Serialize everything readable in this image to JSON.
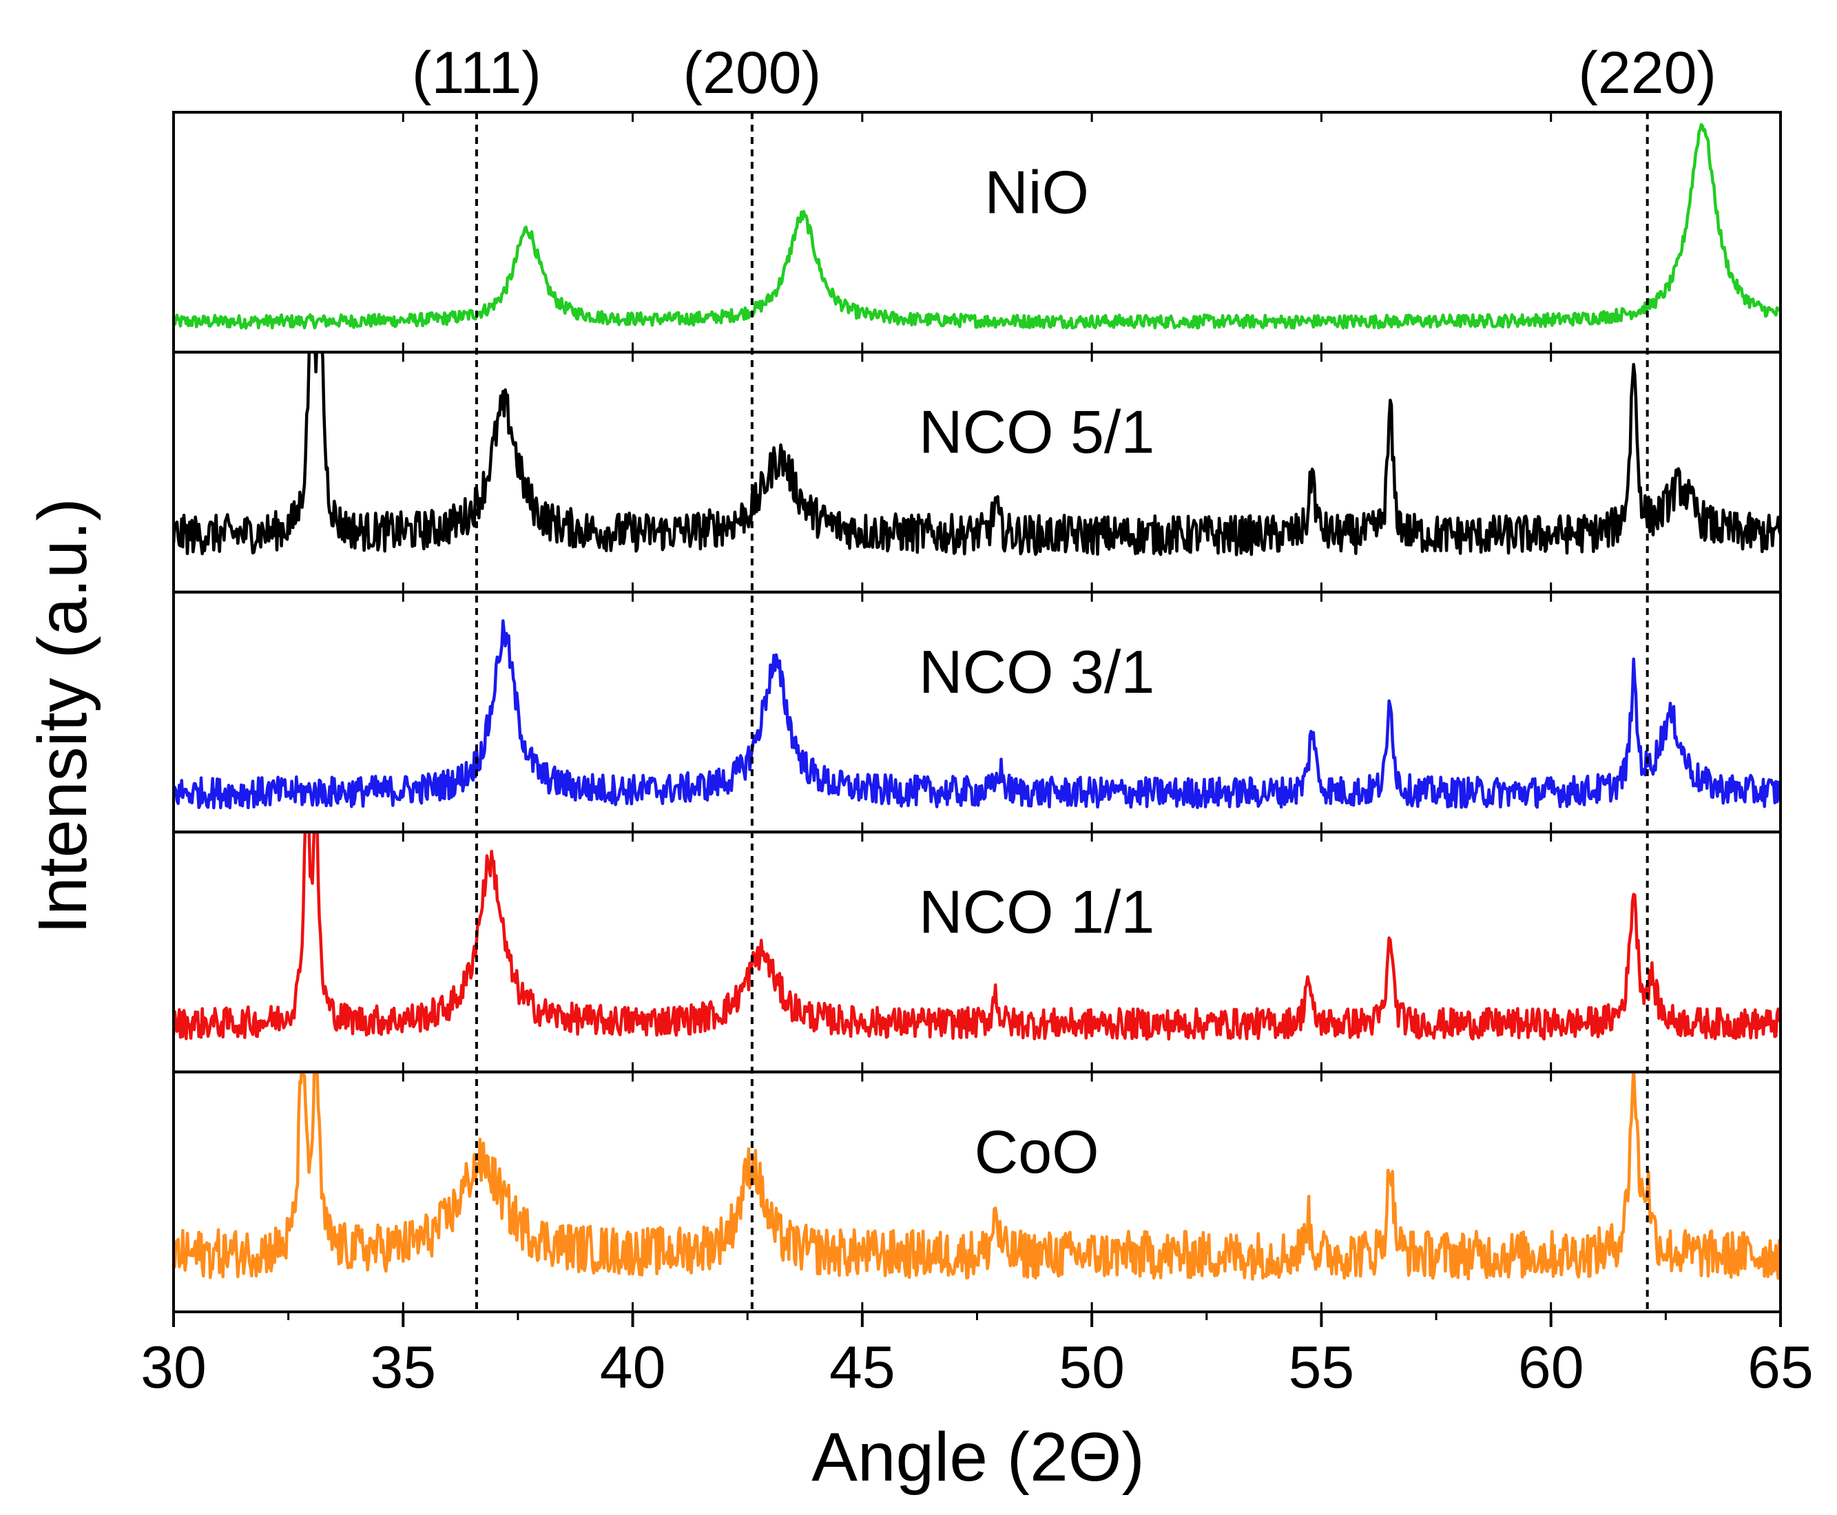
{
  "chart_data": {
    "type": "line",
    "title": "",
    "xlabel": "Angle (2Θ)",
    "ylabel": "Intensity (a.u.)",
    "xlim": [
      30,
      65
    ],
    "x_ticks": [
      30,
      35,
      40,
      45,
      50,
      55,
      60,
      65
    ],
    "x_tick_labels": [
      "30",
      "35",
      "40",
      "45",
      "50",
      "55",
      "60",
      "65"
    ],
    "grid": false,
    "layout": "stacked panels, shared x axis",
    "reference_lines": [
      {
        "label": "(111)",
        "x": 36.6,
        "style": "dotted"
      },
      {
        "label": "(200)",
        "x": 42.6,
        "style": "dotted"
      },
      {
        "label": "(220)",
        "x": 62.1,
        "style": "dotted"
      }
    ],
    "series": [
      {
        "name": "NiO",
        "color": "#22cc22",
        "label_position": 50.0,
        "baseline": 0.1,
        "noise": 0.03,
        "ymax": 1.0,
        "peaks": [
          {
            "x": 37.7,
            "height": 0.42,
            "width": 0.35
          },
          {
            "x": 43.7,
            "height": 0.48,
            "width": 0.38
          },
          {
            "x": 63.3,
            "height": 0.9,
            "width": 0.35
          }
        ]
      },
      {
        "name": "NCO 5/1",
        "color": "#000000",
        "label_position": 50.0,
        "baseline": 0.22,
        "noise": 0.09,
        "ymax": 1.0,
        "peaks": [
          {
            "x": 33.0,
            "height": 0.95,
            "width": 0.09
          },
          {
            "x": 33.2,
            "height": 0.9,
            "width": 0.08
          },
          {
            "x": 37.2,
            "height": 0.58,
            "width": 0.35
          },
          {
            "x": 43.2,
            "height": 0.35,
            "width": 0.45
          },
          {
            "x": 47.9,
            "height": 0.14,
            "width": 0.07
          },
          {
            "x": 54.8,
            "height": 0.3,
            "width": 0.07
          },
          {
            "x": 56.5,
            "height": 0.58,
            "width": 0.07
          },
          {
            "x": 61.8,
            "height": 0.78,
            "width": 0.08
          },
          {
            "x": 62.8,
            "height": 0.22,
            "width": 0.35
          }
        ]
      },
      {
        "name": "NCO 3/1",
        "color": "#1a1aee",
        "label_position": 50.0,
        "baseline": 0.14,
        "noise": 0.07,
        "ymax": 1.0,
        "peaks": [
          {
            "x": 37.2,
            "height": 0.72,
            "width": 0.3
          },
          {
            "x": 43.1,
            "height": 0.58,
            "width": 0.35
          },
          {
            "x": 48.0,
            "height": 0.1,
            "width": 0.08
          },
          {
            "x": 54.8,
            "height": 0.3,
            "width": 0.08
          },
          {
            "x": 56.5,
            "height": 0.45,
            "width": 0.07
          },
          {
            "x": 61.8,
            "height": 0.5,
            "width": 0.08
          },
          {
            "x": 62.6,
            "height": 0.34,
            "width": 0.3
          }
        ]
      },
      {
        "name": "NCO 1/1",
        "color": "#ee1111",
        "label_position": 50.0,
        "baseline": 0.18,
        "noise": 0.07,
        "ymax": 1.0,
        "peaks": [
          {
            "x": 32.9,
            "height": 0.95,
            "width": 0.08
          },
          {
            "x": 33.1,
            "height": 0.9,
            "width": 0.07
          },
          {
            "x": 36.9,
            "height": 0.74,
            "width": 0.32
          },
          {
            "x": 42.8,
            "height": 0.32,
            "width": 0.4
          },
          {
            "x": 47.9,
            "height": 0.14,
            "width": 0.07
          },
          {
            "x": 54.7,
            "height": 0.22,
            "width": 0.07
          },
          {
            "x": 56.5,
            "height": 0.42,
            "width": 0.07
          },
          {
            "x": 61.8,
            "height": 0.6,
            "width": 0.1
          },
          {
            "x": 62.2,
            "height": 0.18,
            "width": 0.12
          }
        ]
      },
      {
        "name": "CoO",
        "color": "#ff8c1a",
        "label_position": 50.0,
        "baseline": 0.22,
        "noise": 0.11,
        "ymax": 1.0,
        "peaks": [
          {
            "x": 32.8,
            "height": 0.9,
            "width": 0.08
          },
          {
            "x": 33.1,
            "height": 0.88,
            "width": 0.08
          },
          {
            "x": 36.7,
            "height": 0.42,
            "width": 0.6
          },
          {
            "x": 42.6,
            "height": 0.42,
            "width": 0.3
          },
          {
            "x": 47.9,
            "height": 0.2,
            "width": 0.07
          },
          {
            "x": 54.7,
            "height": 0.18,
            "width": 0.07
          },
          {
            "x": 56.5,
            "height": 0.45,
            "width": 0.07
          },
          {
            "x": 61.8,
            "height": 0.8,
            "width": 0.1
          },
          {
            "x": 62.1,
            "height": 0.25,
            "width": 0.1
          }
        ]
      }
    ]
  }
}
